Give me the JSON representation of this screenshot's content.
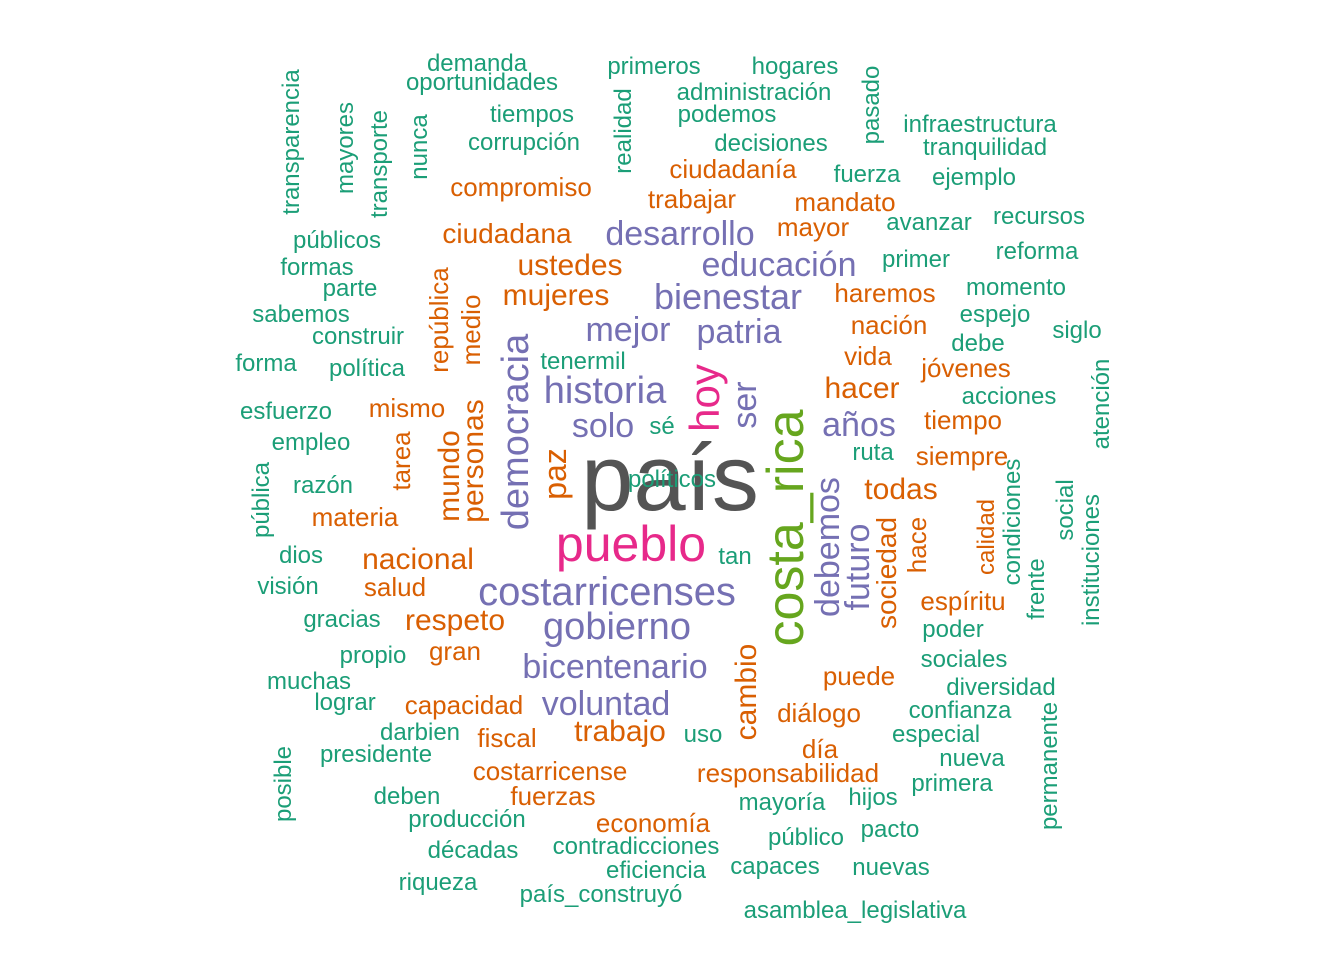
{
  "palette": {
    "c0": "#1b9e77",
    "c1": "#d95f02",
    "c2": "#7570b3",
    "c3": "#e7298a",
    "c4": "#66a61e",
    "c5": "#545454"
  },
  "words": [
    {
      "text": "país",
      "color": "c5"
    },
    {
      "text": "costa_rica",
      "color": "c4"
    },
    {
      "text": "pueblo",
      "color": "c3"
    },
    {
      "text": "hoy",
      "color": "c3"
    },
    {
      "text": "costarricenses",
      "color": "c2"
    },
    {
      "text": "gobierno",
      "color": "c2"
    },
    {
      "text": "historia",
      "color": "c2"
    },
    {
      "text": "democracia",
      "color": "c2"
    },
    {
      "text": "bicentenario",
      "color": "c2"
    },
    {
      "text": "voluntad",
      "color": "c2"
    },
    {
      "text": "bienestar",
      "color": "c2"
    },
    {
      "text": "patria",
      "color": "c2"
    },
    {
      "text": "mejor",
      "color": "c2"
    },
    {
      "text": "educación",
      "color": "c2"
    },
    {
      "text": "desarrollo",
      "color": "c2"
    },
    {
      "text": "solo",
      "color": "c2"
    },
    {
      "text": "ser",
      "color": "c2"
    },
    {
      "text": "años",
      "color": "c2"
    },
    {
      "text": "debemos",
      "color": "c2"
    },
    {
      "text": "futuro",
      "color": "c2"
    },
    {
      "text": "nacional",
      "color": "c1"
    },
    {
      "text": "respeto",
      "color": "c1"
    },
    {
      "text": "trabajo",
      "color": "c1"
    },
    {
      "text": "todas",
      "color": "c1"
    },
    {
      "text": "hacer",
      "color": "c1"
    },
    {
      "text": "mujeres",
      "color": "c1"
    },
    {
      "text": "ustedes",
      "color": "c1"
    },
    {
      "text": "ciudadana",
      "color": "c1"
    },
    {
      "text": "trabajar",
      "color": "c1"
    },
    {
      "text": "ciudadanía",
      "color": "c1"
    },
    {
      "text": "compromiso",
      "color": "c1"
    },
    {
      "text": "mandato",
      "color": "c1"
    },
    {
      "text": "mayor",
      "color": "c1"
    },
    {
      "text": "haremos",
      "color": "c1"
    },
    {
      "text": "nación",
      "color": "c1"
    },
    {
      "text": "vida",
      "color": "c1"
    },
    {
      "text": "jóvenes",
      "color": "c1"
    },
    {
      "text": "tiempo",
      "color": "c1"
    },
    {
      "text": "siempre",
      "color": "c1"
    },
    {
      "text": "mismo",
      "color": "c1"
    },
    {
      "text": "materia",
      "color": "c1"
    },
    {
      "text": "salud",
      "color": "c1"
    },
    {
      "text": "gran",
      "color": "c1"
    },
    {
      "text": "capacidad",
      "color": "c1"
    },
    {
      "text": "fiscal",
      "color": "c1"
    },
    {
      "text": "costarricense",
      "color": "c1"
    },
    {
      "text": "fuerzas",
      "color": "c1"
    },
    {
      "text": "economía",
      "color": "c1"
    },
    {
      "text": "responsabilidad",
      "color": "c1"
    },
    {
      "text": "diálogo",
      "color": "c1"
    },
    {
      "text": "día",
      "color": "c1"
    },
    {
      "text": "puede",
      "color": "c1"
    },
    {
      "text": "espíritu",
      "color": "c1"
    },
    {
      "text": "paz",
      "color": "c1"
    },
    {
      "text": "mundo",
      "color": "c1"
    },
    {
      "text": "personas",
      "color": "c1"
    },
    {
      "text": "medio",
      "color": "c1"
    },
    {
      "text": "república",
      "color": "c1"
    },
    {
      "text": "tarea",
      "color": "c1"
    },
    {
      "text": "cambio",
      "color": "c1"
    },
    {
      "text": "sociedad",
      "color": "c1"
    },
    {
      "text": "hace",
      "color": "c1"
    },
    {
      "text": "calidad",
      "color": "c1"
    },
    {
      "text": "demanda",
      "color": "c0"
    },
    {
      "text": "oportunidades",
      "color": "c0"
    },
    {
      "text": "primeros",
      "color": "c0"
    },
    {
      "text": "hogares",
      "color": "c0"
    },
    {
      "text": "administración",
      "color": "c0"
    },
    {
      "text": "tiempos",
      "color": "c0"
    },
    {
      "text": "podemos",
      "color": "c0"
    },
    {
      "text": "corrupción",
      "color": "c0"
    },
    {
      "text": "decisiones",
      "color": "c0"
    },
    {
      "text": "infraestructura",
      "color": "c0"
    },
    {
      "text": "tranquilidad",
      "color": "c0"
    },
    {
      "text": "fuerza",
      "color": "c0"
    },
    {
      "text": "ejemplo",
      "color": "c0"
    },
    {
      "text": "avanzar",
      "color": "c0"
    },
    {
      "text": "recursos",
      "color": "c0"
    },
    {
      "text": "reforma",
      "color": "c0"
    },
    {
      "text": "primer",
      "color": "c0"
    },
    {
      "text": "momento",
      "color": "c0"
    },
    {
      "text": "espejo",
      "color": "c0"
    },
    {
      "text": "siglo",
      "color": "c0"
    },
    {
      "text": "debe",
      "color": "c0"
    },
    {
      "text": "acciones",
      "color": "c0"
    },
    {
      "text": "públicos",
      "color": "c0"
    },
    {
      "text": "formas",
      "color": "c0"
    },
    {
      "text": "parte",
      "color": "c0"
    },
    {
      "text": "sabemos",
      "color": "c0"
    },
    {
      "text": "construir",
      "color": "c0"
    },
    {
      "text": "forma",
      "color": "c0"
    },
    {
      "text": "política",
      "color": "c0"
    },
    {
      "text": "tenermil",
      "color": "c0"
    },
    {
      "text": "esfuerzo",
      "color": "c0"
    },
    {
      "text": "empleo",
      "color": "c0"
    },
    {
      "text": "sé",
      "color": "c0"
    },
    {
      "text": "razón",
      "color": "c0"
    },
    {
      "text": "ruta",
      "color": "c0"
    },
    {
      "text": "dios",
      "color": "c0"
    },
    {
      "text": "tan",
      "color": "c0"
    },
    {
      "text": "visión",
      "color": "c0"
    },
    {
      "text": "gracias",
      "color": "c0"
    },
    {
      "text": "propio",
      "color": "c0"
    },
    {
      "text": "muchas",
      "color": "c0"
    },
    {
      "text": "lograr",
      "color": "c0"
    },
    {
      "text": "darbien",
      "color": "c0"
    },
    {
      "text": "presidente",
      "color": "c0"
    },
    {
      "text": "deben",
      "color": "c0"
    },
    {
      "text": "producción",
      "color": "c0"
    },
    {
      "text": "décadas",
      "color": "c0"
    },
    {
      "text": "riqueza",
      "color": "c0"
    },
    {
      "text": "contradicciones",
      "color": "c0"
    },
    {
      "text": "eficiencia",
      "color": "c0"
    },
    {
      "text": "país_construyó",
      "color": "c0"
    },
    {
      "text": "capaces",
      "color": "c0"
    },
    {
      "text": "nuevas",
      "color": "c0"
    },
    {
      "text": "asamblea_legislativa",
      "color": "c0"
    },
    {
      "text": "público",
      "color": "c0"
    },
    {
      "text": "pacto",
      "color": "c0"
    },
    {
      "text": "mayoría",
      "color": "c0"
    },
    {
      "text": "hijos",
      "color": "c0"
    },
    {
      "text": "uso",
      "color": "c0"
    },
    {
      "text": "primera",
      "color": "c0"
    },
    {
      "text": "nueva",
      "color": "c0"
    },
    {
      "text": "especial",
      "color": "c0"
    },
    {
      "text": "confianza",
      "color": "c0"
    },
    {
      "text": "diversidad",
      "color": "c0"
    },
    {
      "text": "sociales",
      "color": "c0"
    },
    {
      "text": "poder",
      "color": "c0"
    },
    {
      "text": "transparencia",
      "color": "c0"
    },
    {
      "text": "mayores",
      "color": "c0"
    },
    {
      "text": "transporte",
      "color": "c0"
    },
    {
      "text": "nunca",
      "color": "c0"
    },
    {
      "text": "realidad",
      "color": "c0"
    },
    {
      "text": "pasado",
      "color": "c0"
    },
    {
      "text": "atención",
      "color": "c0"
    },
    {
      "text": "social",
      "color": "c0"
    },
    {
      "text": "instituciones",
      "color": "c0"
    },
    {
      "text": "condiciones",
      "color": "c0"
    },
    {
      "text": "frente",
      "color": "c0"
    },
    {
      "text": "pública",
      "color": "c0"
    },
    {
      "text": "posible",
      "color": "c0"
    },
    {
      "text": "permanente",
      "color": "c0"
    },
    {
      "text": "políticos",
      "color": "c0"
    }
  ]
}
